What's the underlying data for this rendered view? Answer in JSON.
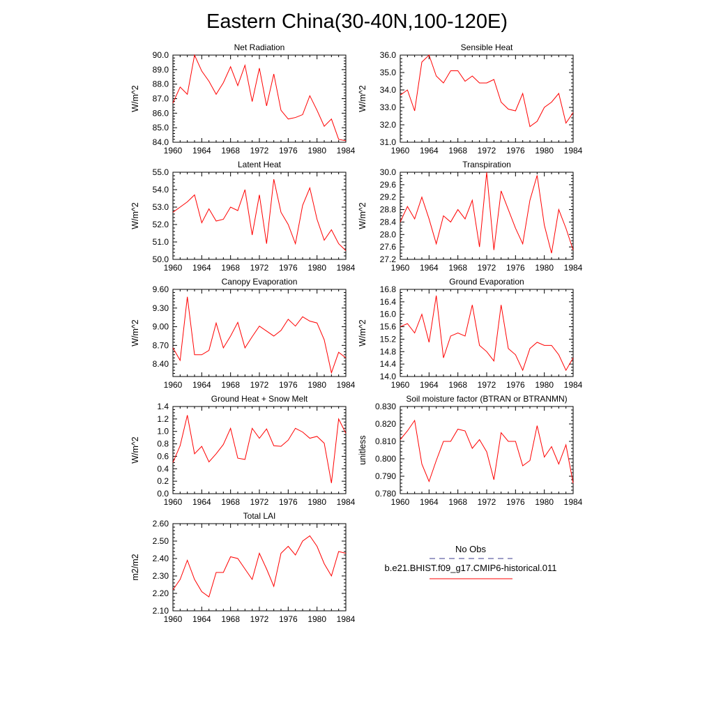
{
  "figure": {
    "title": "Eastern China(30-40N,100-120E)"
  },
  "chart_data": [
    {
      "type": "line",
      "title": "Net Radiation",
      "xlabel": "",
      "ylabel": "W/m^2",
      "xlim": [
        1960,
        1984
      ],
      "ylim": [
        84.0,
        90.0
      ],
      "xticks": [
        1960,
        1964,
        1968,
        1972,
        1976,
        1980,
        1984
      ],
      "yticks": [
        84.0,
        85.0,
        86.0,
        87.0,
        88.0,
        89.0,
        90.0
      ],
      "ytick_labels": [
        "84.0",
        "85.0",
        "86.0",
        "87.0",
        "88.0",
        "89.0",
        "90.0"
      ],
      "yminor": 0.2,
      "x": [
        1960,
        1961,
        1962,
        1963,
        1964,
        1965,
        1966,
        1967,
        1968,
        1969,
        1970,
        1971,
        1972,
        1973,
        1974,
        1975,
        1976,
        1977,
        1978,
        1979,
        1980,
        1981,
        1982,
        1983,
        1984
      ],
      "series": [
        {
          "name": "b.e21.BHIST.f09_g17.CMIP6-historical.011",
          "color": "#ff0000",
          "values": [
            86.7,
            87.8,
            87.3,
            90.0,
            88.9,
            88.2,
            87.3,
            88.1,
            89.2,
            87.9,
            89.3,
            86.8,
            89.1,
            86.5,
            88.7,
            86.2,
            85.6,
            85.7,
            85.9,
            87.2,
            86.2,
            85.1,
            85.6,
            84.2,
            84.1
          ]
        }
      ]
    },
    {
      "type": "line",
      "title": "Sensible Heat",
      "xlabel": "",
      "ylabel": "W/m^2",
      "xlim": [
        1960,
        1984
      ],
      "ylim": [
        31.0,
        36.0
      ],
      "xticks": [
        1960,
        1964,
        1968,
        1972,
        1976,
        1980,
        1984
      ],
      "yticks": [
        31.0,
        32.0,
        33.0,
        34.0,
        35.0,
        36.0
      ],
      "ytick_labels": [
        "31.0",
        "32.0",
        "33.0",
        "34.0",
        "35.0",
        "36.0"
      ],
      "yminor": 0.2,
      "x": [
        1960,
        1961,
        1962,
        1963,
        1964,
        1965,
        1966,
        1967,
        1968,
        1969,
        1970,
        1971,
        1972,
        1973,
        1974,
        1975,
        1976,
        1977,
        1978,
        1979,
        1980,
        1981,
        1982,
        1983,
        1984
      ],
      "series": [
        {
          "name": "b.e21.BHIST.f09_g17.CMIP6-historical.011",
          "color": "#ff0000",
          "values": [
            33.7,
            34.0,
            32.8,
            35.6,
            36.0,
            34.8,
            34.4,
            35.1,
            35.1,
            34.5,
            34.8,
            34.4,
            34.4,
            34.6,
            33.3,
            32.9,
            32.8,
            33.8,
            31.9,
            32.2,
            33.0,
            33.3,
            33.8,
            32.1,
            32.7
          ]
        }
      ]
    },
    {
      "type": "line",
      "title": "Latent Heat",
      "xlabel": "",
      "ylabel": "W/m^2",
      "xlim": [
        1960,
        1984
      ],
      "ylim": [
        50.0,
        55.0
      ],
      "xticks": [
        1960,
        1964,
        1968,
        1972,
        1976,
        1980,
        1984
      ],
      "yticks": [
        50.0,
        51.0,
        52.0,
        53.0,
        54.0,
        55.0
      ],
      "ytick_labels": [
        "50.0",
        "51.0",
        "52.0",
        "53.0",
        "54.0",
        "55.0"
      ],
      "yminor": 0.2,
      "x": [
        1960,
        1961,
        1962,
        1963,
        1964,
        1965,
        1966,
        1967,
        1968,
        1969,
        1970,
        1971,
        1972,
        1973,
        1974,
        1975,
        1976,
        1977,
        1978,
        1979,
        1980,
        1981,
        1982,
        1983,
        1984
      ],
      "series": [
        {
          "name": "b.e21.BHIST.f09_g17.CMIP6-historical.011",
          "color": "#ff0000",
          "values": [
            52.7,
            53.0,
            53.3,
            53.7,
            52.1,
            52.9,
            52.2,
            52.3,
            53.0,
            52.8,
            54.0,
            51.4,
            53.7,
            50.9,
            54.6,
            52.7,
            52.0,
            50.9,
            53.1,
            54.1,
            52.3,
            51.1,
            51.7,
            50.9,
            50.5
          ]
        }
      ]
    },
    {
      "type": "line",
      "title": "Transpiration",
      "xlabel": "",
      "ylabel": "W/m^2",
      "xlim": [
        1960,
        1984
      ],
      "ylim": [
        27.2,
        30.0
      ],
      "xticks": [
        1960,
        1964,
        1968,
        1972,
        1976,
        1980,
        1984
      ],
      "yticks": [
        27.2,
        27.6,
        28.0,
        28.4,
        28.8,
        29.2,
        29.6,
        30.0
      ],
      "ytick_labels": [
        "27.2",
        "27.6",
        "28.0",
        "28.4",
        "28.8",
        "29.2",
        "29.6",
        "30.0"
      ],
      "yminor": 0.1,
      "x": [
        1960,
        1961,
        1962,
        1963,
        1964,
        1965,
        1966,
        1967,
        1968,
        1969,
        1970,
        1971,
        1972,
        1973,
        1974,
        1975,
        1976,
        1977,
        1978,
        1979,
        1980,
        1981,
        1982,
        1983,
        1984
      ],
      "series": [
        {
          "name": "b.e21.BHIST.f09_g17.CMIP6-historical.011",
          "color": "#ff0000",
          "values": [
            28.4,
            28.9,
            28.5,
            29.2,
            28.5,
            27.7,
            28.6,
            28.4,
            28.8,
            28.5,
            29.1,
            27.6,
            30.0,
            27.5,
            29.4,
            28.8,
            28.2,
            27.7,
            29.1,
            29.9,
            28.3,
            27.4,
            28.8,
            28.2,
            27.5
          ]
        }
      ]
    },
    {
      "type": "line",
      "title": "Canopy Evaporation",
      "xlabel": "",
      "ylabel": "W/m^2",
      "xlim": [
        1960,
        1984
      ],
      "ylim": [
        8.2,
        9.6
      ],
      "xticks": [
        1960,
        1964,
        1968,
        1972,
        1976,
        1980,
        1984
      ],
      "yticks": [
        8.4,
        8.7,
        9.0,
        9.3,
        9.6
      ],
      "ytick_labels": [
        "8.40",
        "8.70",
        "9.00",
        "9.30",
        "9.60"
      ],
      "yminor": 0.05,
      "x": [
        1960,
        1961,
        1962,
        1963,
        1964,
        1965,
        1966,
        1967,
        1968,
        1969,
        1970,
        1971,
        1972,
        1973,
        1974,
        1975,
        1976,
        1977,
        1978,
        1979,
        1980,
        1981,
        1982,
        1983,
        1984
      ],
      "series": [
        {
          "name": "b.e21.BHIST.f09_g17.CMIP6-historical.011",
          "color": "#ff0000",
          "values": [
            8.66,
            8.46,
            9.48,
            8.55,
            8.55,
            8.62,
            9.06,
            8.66,
            8.85,
            9.07,
            8.66,
            8.84,
            9.01,
            8.93,
            8.85,
            8.94,
            9.12,
            9.01,
            9.16,
            9.09,
            9.06,
            8.79,
            8.26,
            8.59,
            8.5
          ]
        }
      ]
    },
    {
      "type": "line",
      "title": "Ground Evaporation",
      "xlabel": "",
      "ylabel": "W/m^2",
      "xlim": [
        1960,
        1984
      ],
      "ylim": [
        14.0,
        16.8
      ],
      "xticks": [
        1960,
        1964,
        1968,
        1972,
        1976,
        1980,
        1984
      ],
      "yticks": [
        14.0,
        14.4,
        14.8,
        15.2,
        15.6,
        16.0,
        16.4,
        16.8
      ],
      "ytick_labels": [
        "14.0",
        "14.4",
        "14.8",
        "15.2",
        "15.6",
        "16.0",
        "16.4",
        "16.8"
      ],
      "yminor": 0.1,
      "x": [
        1960,
        1961,
        1962,
        1963,
        1964,
        1965,
        1966,
        1967,
        1968,
        1969,
        1970,
        1971,
        1972,
        1973,
        1974,
        1975,
        1976,
        1977,
        1978,
        1979,
        1980,
        1981,
        1982,
        1983,
        1984
      ],
      "series": [
        {
          "name": "b.e21.BHIST.f09_g17.CMIP6-historical.011",
          "color": "#ff0000",
          "values": [
            15.6,
            15.7,
            15.4,
            16.0,
            15.1,
            16.6,
            14.6,
            15.3,
            15.4,
            15.3,
            16.3,
            15.0,
            14.8,
            14.5,
            16.3,
            14.9,
            14.7,
            14.2,
            14.9,
            15.1,
            15.0,
            15.0,
            14.7,
            14.2,
            14.6
          ]
        }
      ]
    },
    {
      "type": "line",
      "title": "Ground Heat + Snow Melt",
      "xlabel": "",
      "ylabel": "W/m^2",
      "xlim": [
        1960,
        1984
      ],
      "ylim": [
        0.0,
        1.4
      ],
      "xticks": [
        1960,
        1964,
        1968,
        1972,
        1976,
        1980,
        1984
      ],
      "yticks": [
        0.0,
        0.2,
        0.4,
        0.6,
        0.8,
        1.0,
        1.2,
        1.4
      ],
      "ytick_labels": [
        "0.0",
        "0.2",
        "0.4",
        "0.6",
        "0.8",
        "1.0",
        "1.2",
        "1.4"
      ],
      "yminor": 0.05,
      "x": [
        1960,
        1961,
        1962,
        1963,
        1964,
        1965,
        1966,
        1967,
        1968,
        1969,
        1970,
        1971,
        1972,
        1973,
        1974,
        1975,
        1976,
        1977,
        1978,
        1979,
        1980,
        1981,
        1982,
        1983,
        1984
      ],
      "series": [
        {
          "name": "b.e21.BHIST.f09_g17.CMIP6-historical.011",
          "color": "#ff0000",
          "values": [
            0.5,
            0.77,
            1.26,
            0.64,
            0.76,
            0.51,
            0.64,
            0.79,
            1.05,
            0.57,
            0.55,
            1.05,
            0.89,
            1.04,
            0.77,
            0.76,
            0.86,
            1.05,
            0.99,
            0.89,
            0.92,
            0.81,
            0.17,
            1.2,
            0.97
          ]
        }
      ]
    },
    {
      "type": "line",
      "title": "Soil moisture factor (BTRAN or BTRANMN)",
      "xlabel": "",
      "ylabel": "unitless",
      "xlim": [
        1960,
        1984
      ],
      "ylim": [
        0.78,
        0.83
      ],
      "xticks": [
        1960,
        1964,
        1968,
        1972,
        1976,
        1980,
        1984
      ],
      "yticks": [
        0.78,
        0.79,
        0.8,
        0.81,
        0.82,
        0.83
      ],
      "ytick_labels": [
        "0.780",
        "0.790",
        "0.800",
        "0.810",
        "0.820",
        "0.830"
      ],
      "yminor": 0.002,
      "x": [
        1960,
        1961,
        1962,
        1963,
        1964,
        1965,
        1966,
        1967,
        1968,
        1969,
        1970,
        1971,
        1972,
        1973,
        1974,
        1975,
        1976,
        1977,
        1978,
        1979,
        1980,
        1981,
        1982,
        1983,
        1984
      ],
      "series": [
        {
          "name": "b.e21.BHIST.f09_g17.CMIP6-historical.011",
          "color": "#ff0000",
          "values": [
            0.811,
            0.816,
            0.822,
            0.797,
            0.787,
            0.799,
            0.81,
            0.81,
            0.817,
            0.816,
            0.806,
            0.811,
            0.804,
            0.788,
            0.815,
            0.81,
            0.81,
            0.796,
            0.799,
            0.819,
            0.801,
            0.807,
            0.797,
            0.808,
            0.786
          ]
        }
      ]
    },
    {
      "type": "line",
      "title": "Total LAI",
      "xlabel": "",
      "ylabel": "m2/m2",
      "xlim": [
        1960,
        1984
      ],
      "ylim": [
        2.1,
        2.6
      ],
      "xticks": [
        1960,
        1964,
        1968,
        1972,
        1976,
        1980,
        1984
      ],
      "yticks": [
        2.1,
        2.2,
        2.3,
        2.4,
        2.5,
        2.6
      ],
      "ytick_labels": [
        "2.10",
        "2.20",
        "2.30",
        "2.40",
        "2.50",
        "2.60"
      ],
      "yminor": 0.02,
      "x": [
        1960,
        1961,
        1962,
        1963,
        1964,
        1965,
        1966,
        1967,
        1968,
        1969,
        1970,
        1971,
        1972,
        1973,
        1974,
        1975,
        1976,
        1977,
        1978,
        1979,
        1980,
        1981,
        1982,
        1983,
        1984
      ],
      "series": [
        {
          "name": "b.e21.BHIST.f09_g17.CMIP6-historical.011",
          "color": "#ff0000",
          "values": [
            2.22,
            2.28,
            2.39,
            2.28,
            2.21,
            2.18,
            2.32,
            2.32,
            2.41,
            2.4,
            2.34,
            2.28,
            2.43,
            2.34,
            2.24,
            2.43,
            2.47,
            2.42,
            2.5,
            2.53,
            2.47,
            2.37,
            2.3,
            2.44,
            2.43
          ]
        }
      ]
    }
  ],
  "legend": {
    "entries": [
      {
        "label": "No Obs",
        "color": "#3b3b8f",
        "style": "dashed"
      },
      {
        "label": "b.e21.BHIST.f09_g17.CMIP6-historical.011",
        "color": "#ff0000",
        "style": "solid"
      }
    ]
  }
}
